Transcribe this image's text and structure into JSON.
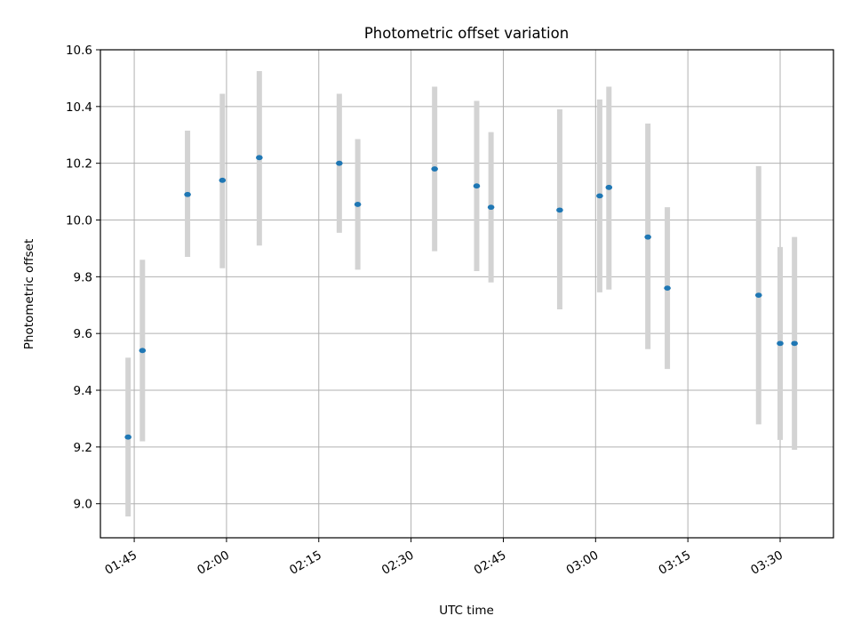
{
  "chart_data": {
    "type": "scatter",
    "title": "Photometric offset variation",
    "xlabel": "UTC time",
    "ylabel": "Photometric offset",
    "x_unit": "UTC time (hh:mm)",
    "xlim": [
      "01:39:30",
      "03:38:40"
    ],
    "ylim": [
      8.88,
      10.6
    ],
    "xticks": [
      "01:45",
      "02:00",
      "02:15",
      "02:30",
      "02:45",
      "03:00",
      "03:15",
      "03:30"
    ],
    "yticks": [
      "9.0",
      "9.2",
      "9.4",
      "9.6",
      "9.8",
      "10.0",
      "10.2",
      "10.4",
      "10.6"
    ],
    "grid": true,
    "point_color": "#1f77b4",
    "errorbar_color": "#d3d3d3",
    "grid_color": "#b0b0b0",
    "points": [
      {
        "time": "01:44:00",
        "y": 9.235,
        "ylow": 8.955,
        "yhigh": 9.515
      },
      {
        "time": "01:46:20",
        "y": 9.54,
        "ylow": 9.22,
        "yhigh": 9.86
      },
      {
        "time": "01:53:40",
        "y": 10.09,
        "ylow": 9.87,
        "yhigh": 10.315
      },
      {
        "time": "01:59:20",
        "y": 10.14,
        "ylow": 9.83,
        "yhigh": 10.445
      },
      {
        "time": "02:05:20",
        "y": 10.22,
        "ylow": 9.91,
        "yhigh": 10.525
      },
      {
        "time": "02:18:20",
        "y": 10.2,
        "ylow": 9.955,
        "yhigh": 10.445
      },
      {
        "time": "02:21:20",
        "y": 10.055,
        "ylow": 9.825,
        "yhigh": 10.285
      },
      {
        "time": "02:33:50",
        "y": 10.18,
        "ylow": 9.89,
        "yhigh": 10.47
      },
      {
        "time": "02:40:40",
        "y": 10.12,
        "ylow": 9.82,
        "yhigh": 10.42
      },
      {
        "time": "02:43:00",
        "y": 10.045,
        "ylow": 9.78,
        "yhigh": 10.31
      },
      {
        "time": "02:54:10",
        "y": 10.035,
        "ylow": 9.685,
        "yhigh": 10.39
      },
      {
        "time": "03:00:40",
        "y": 10.085,
        "ylow": 9.745,
        "yhigh": 10.425
      },
      {
        "time": "03:02:10",
        "y": 10.115,
        "ylow": 9.755,
        "yhigh": 10.47
      },
      {
        "time": "03:08:30",
        "y": 9.94,
        "ylow": 9.545,
        "yhigh": 10.34
      },
      {
        "time": "03:11:40",
        "y": 9.76,
        "ylow": 9.475,
        "yhigh": 10.045
      },
      {
        "time": "03:26:30",
        "y": 9.735,
        "ylow": 9.28,
        "yhigh": 10.19
      },
      {
        "time": "03:30:00",
        "y": 9.565,
        "ylow": 9.225,
        "yhigh": 9.905
      },
      {
        "time": "03:32:20",
        "y": 9.565,
        "ylow": 9.19,
        "yhigh": 9.94
      }
    ]
  }
}
